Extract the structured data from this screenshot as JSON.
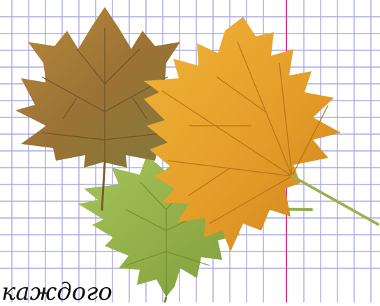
{
  "caption": {
    "text": "каждого"
  },
  "colors": {
    "paper": "#ffffff",
    "grid_line": "#a9a9e6",
    "margin_line": "#e23c8a",
    "leaf_brown": "#9a7a3a",
    "leaf_green": "#9ab94a",
    "leaf_orange": "#e7a52e",
    "text": "#111111"
  },
  "icons": [
    "maple-leaf-brown",
    "maple-leaf-green",
    "maple-leaf-orange"
  ]
}
